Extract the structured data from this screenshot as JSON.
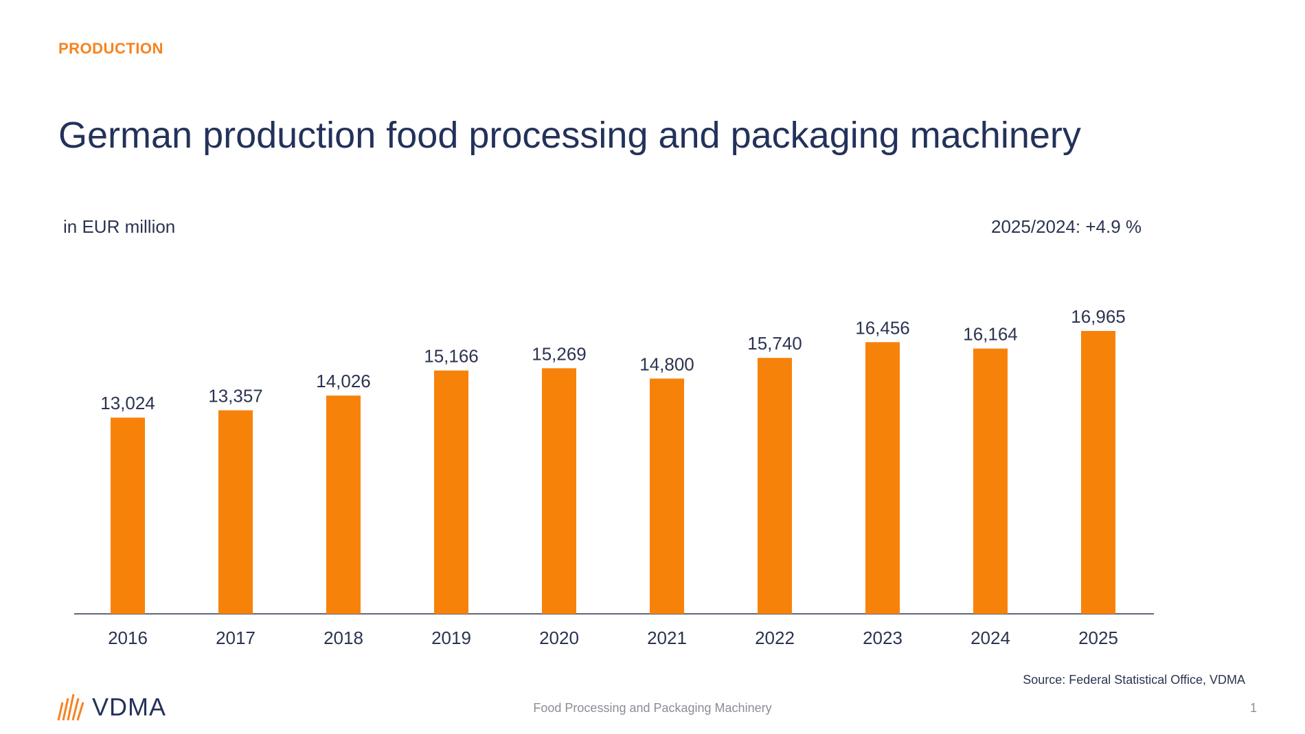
{
  "header": {
    "section": "PRODUCTION",
    "title": "German production food processing and packaging machinery"
  },
  "chart_info": {
    "unit": "in EUR million",
    "change": "2025/2024: +4.9 %"
  },
  "footer": {
    "source": "Source: Federal Statistical Office, VDMA",
    "center": "Food Processing and Packaging Machinery",
    "page": "1",
    "logo_text": "VDMA"
  },
  "colors": {
    "bar": "#f7820a",
    "accent": "#f7821e",
    "text": "#23325a"
  },
  "chart_data": {
    "type": "bar",
    "categories": [
      "2016",
      "2017",
      "2018",
      "2019",
      "2020",
      "2021",
      "2022",
      "2023",
      "2024",
      "2025"
    ],
    "values": [
      13024,
      13357,
      14026,
      15166,
      15269,
      14800,
      15740,
      16456,
      16164,
      16965
    ],
    "value_labels": [
      "13,024",
      "13,357",
      "14,026",
      "15,166",
      "15,269",
      "14,800",
      "15,740",
      "16,456",
      "16,164",
      "16,965"
    ],
    "title": "",
    "xlabel": "",
    "ylabel": "",
    "ylim": [
      4100,
      18000
    ],
    "grid": false,
    "legend": "none"
  }
}
